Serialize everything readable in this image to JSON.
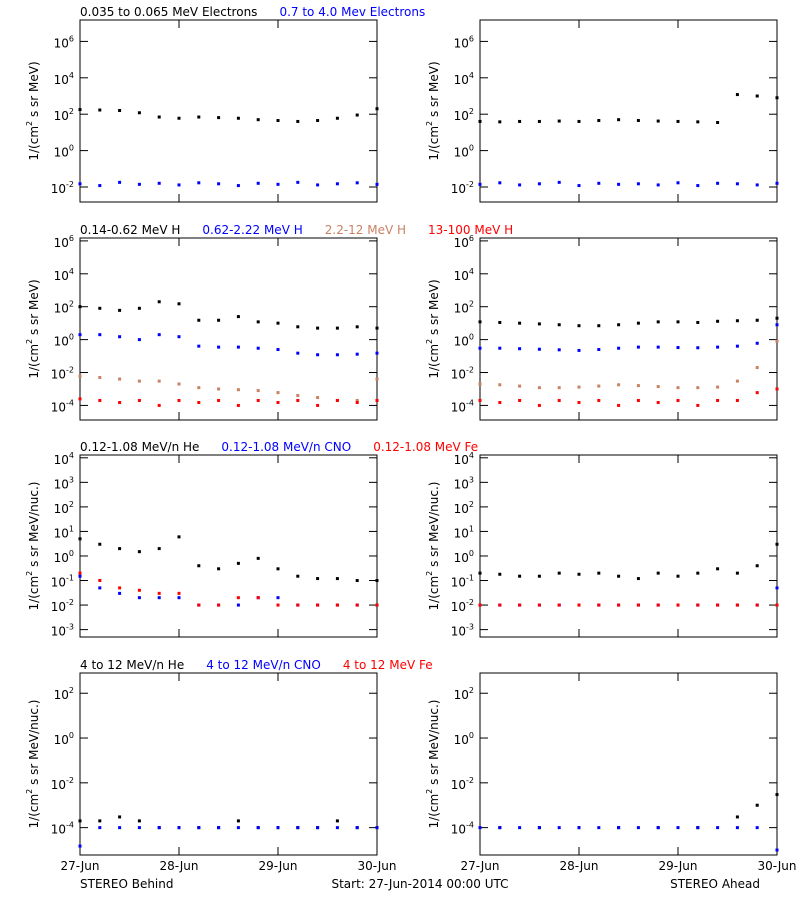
{
  "chart_data": [
    {
      "type": "scatter",
      "log_y": true,
      "ylabel": "1/(cm^2 s sr MeV)",
      "ylim": [
        0.0015,
        15000000
      ],
      "yticks": [
        {
          "value": 0.01,
          "label": "10^-2"
        },
        {
          "value": 1,
          "label": "10^0"
        },
        {
          "value": 100,
          "label": "10^2"
        },
        {
          "value": 10000,
          "label": "10^4"
        },
        {
          "value": 1000000,
          "label": "10^6"
        }
      ],
      "xlim": [
        0,
        3
      ],
      "xticks": [
        0,
        1,
        2,
        3
      ],
      "xtick_labels": false,
      "x": [
        0,
        0.2,
        0.4,
        0.6,
        0.8,
        1.0,
        1.2,
        1.4,
        1.6,
        1.8,
        2.0,
        2.2,
        2.4,
        2.6,
        2.8,
        3.0
      ],
      "series": [
        {
          "name": "0.035 to 0.065 MeV Electrons",
          "color": "#000000",
          "values": [
            180,
            170,
            160,
            120,
            70,
            60,
            70,
            65,
            60,
            50,
            45,
            40,
            45,
            60,
            90,
            200
          ]
        },
        {
          "name": "0.7 to 4.0 Mev Electrons",
          "color": "#0000ff",
          "values": [
            0.015,
            0.012,
            0.018,
            0.014,
            0.016,
            0.013,
            0.017,
            0.015,
            0.012,
            0.016,
            0.014,
            0.018,
            0.013,
            0.015,
            0.017,
            0.014
          ]
        }
      ]
    },
    {
      "type": "scatter",
      "log_y": true,
      "ylabel": "1/(cm^2 s sr MeV)",
      "ylim": [
        0.0015,
        15000000
      ],
      "yticks": [
        {
          "value": 0.01,
          "label": "10^-2"
        },
        {
          "value": 1,
          "label": "10^0"
        },
        {
          "value": 100,
          "label": "10^2"
        },
        {
          "value": 10000,
          "label": "10^4"
        },
        {
          "value": 1000000,
          "label": "10^6"
        }
      ],
      "xlim": [
        0,
        3
      ],
      "xticks": [
        0,
        1,
        2,
        3
      ],
      "xtick_labels": false,
      "x": [
        0,
        0.2,
        0.4,
        0.6,
        0.8,
        1.0,
        1.2,
        1.4,
        1.6,
        1.8,
        2.0,
        2.2,
        2.4,
        2.6,
        2.8,
        3.0
      ],
      "series": [
        {
          "color": "#000000",
          "values": [
            40,
            38,
            40,
            40,
            42,
            40,
            45,
            50,
            45,
            42,
            40,
            38,
            35,
            1200,
            1000,
            800
          ]
        },
        {
          "color": "#0000ff",
          "values": [
            0.014,
            0.017,
            0.013,
            0.015,
            0.018,
            0.012,
            0.016,
            0.014,
            0.015,
            0.013,
            0.017,
            0.012,
            0.016,
            0.015,
            0.013,
            0.016
          ]
        }
      ]
    },
    {
      "type": "scatter",
      "log_y": true,
      "ylabel": "1/(cm^2 s sr MeV)",
      "ylim": [
        1.3e-05,
        1500000
      ],
      "yticks": [
        {
          "value": 0.0001,
          "label": "10^-4"
        },
        {
          "value": 0.01,
          "label": "10^-2"
        },
        {
          "value": 1,
          "label": "10^0"
        },
        {
          "value": 100,
          "label": "10^2"
        },
        {
          "value": 10000,
          "label": "10^4"
        },
        {
          "value": 1000000,
          "label": "10^6"
        }
      ],
      "xlim": [
        0,
        3
      ],
      "xticks": [
        0,
        1,
        2,
        3
      ],
      "xtick_labels": false,
      "x": [
        0,
        0.2,
        0.4,
        0.6,
        0.8,
        1.0,
        1.2,
        1.4,
        1.6,
        1.8,
        2.0,
        2.2,
        2.4,
        2.6,
        2.8,
        3.0
      ],
      "series": [
        {
          "name": "0.14-0.62 MeV H",
          "color": "#000000",
          "values": [
            100,
            80,
            60,
            80,
            200,
            150,
            15,
            15,
            25,
            12,
            10,
            6,
            5,
            5,
            6,
            5
          ]
        },
        {
          "name": "0.62-2.22 MeV H",
          "color": "#0000ff",
          "values": [
            2,
            2,
            1.5,
            1,
            2,
            1.5,
            0.4,
            0.35,
            0.35,
            0.3,
            0.25,
            0.15,
            0.12,
            0.12,
            0.13,
            0.15
          ]
        },
        {
          "name": "2.2-12 MeV H",
          "color": "#c88264",
          "values": [
            0.006,
            0.005,
            0.004,
            0.003,
            0.003,
            0.002,
            0.0012,
            0.001,
            0.0009,
            0.0008,
            0.0006,
            0.0004,
            0.0003,
            0.0002,
            0.0002,
            0.004
          ]
        },
        {
          "name": "13-100 MeV H",
          "color": "#ff0000",
          "values": [
            0.00025,
            0.0002,
            0.00015,
            0.0002,
            0.0001,
            0.0002,
            0.00015,
            0.0002,
            0.0001,
            0.0002,
            0.00015,
            0.0002,
            0.0001,
            0.0002,
            0.00015,
            0.0002
          ]
        }
      ]
    },
    {
      "type": "scatter",
      "log_y": true,
      "ylabel": "1/(cm^2 s sr MeV)",
      "ylim": [
        1.3e-05,
        1500000
      ],
      "yticks": [
        {
          "value": 0.0001,
          "label": "10^-4"
        },
        {
          "value": 0.01,
          "label": "10^-2"
        },
        {
          "value": 1,
          "label": "10^0"
        },
        {
          "value": 100,
          "label": "10^2"
        },
        {
          "value": 10000,
          "label": "10^4"
        },
        {
          "value": 1000000,
          "label": "10^6"
        }
      ],
      "xlim": [
        0,
        3
      ],
      "xticks": [
        0,
        1,
        2,
        3
      ],
      "xtick_labels": false,
      "x": [
        0,
        0.2,
        0.4,
        0.6,
        0.8,
        1.0,
        1.2,
        1.4,
        1.6,
        1.8,
        2.0,
        2.2,
        2.4,
        2.6,
        2.8,
        3.0
      ],
      "series": [
        {
          "color": "#000000",
          "values": [
            12,
            11,
            10,
            9,
            8,
            7,
            7,
            8,
            10,
            12,
            12,
            11,
            13,
            14,
            15,
            20
          ]
        },
        {
          "color": "#0000ff",
          "values": [
            0.3,
            0.3,
            0.28,
            0.26,
            0.24,
            0.22,
            0.25,
            0.3,
            0.35,
            0.35,
            0.33,
            0.32,
            0.35,
            0.4,
            0.6,
            8
          ]
        },
        {
          "color": "#c88264",
          "values": [
            0.002,
            0.0018,
            0.0015,
            0.0012,
            0.0012,
            0.0013,
            0.0015,
            0.0018,
            0.0016,
            0.0014,
            0.0012,
            0.0012,
            0.0013,
            0.003,
            0.02,
            0.8
          ]
        },
        {
          "color": "#ff0000",
          "values": [
            0.0002,
            0.00015,
            0.0002,
            0.0001,
            0.0002,
            0.00015,
            0.0002,
            0.0001,
            0.0002,
            0.00015,
            0.0002,
            0.0001,
            0.0002,
            0.0002,
            0.0006,
            0.001
          ]
        }
      ]
    },
    {
      "type": "scatter",
      "log_y": true,
      "ylabel": "1/(cm^2 s sr MeV/nuc.)",
      "ylim": [
        0.0005,
        13000
      ],
      "yticks": [
        {
          "value": 0.001,
          "label": "10^-3"
        },
        {
          "value": 0.01,
          "label": "10^-2"
        },
        {
          "value": 0.1,
          "label": "10^-1"
        },
        {
          "value": 1,
          "label": "10^0"
        },
        {
          "value": 10,
          "label": "10^1"
        },
        {
          "value": 100,
          "label": "10^2"
        },
        {
          "value": 1000,
          "label": "10^3"
        },
        {
          "value": 10000,
          "label": "10^4"
        }
      ],
      "xlim": [
        0,
        3
      ],
      "xticks": [
        0,
        1,
        2,
        3
      ],
      "xtick_labels": false,
      "x": [
        0,
        0.2,
        0.4,
        0.6,
        0.8,
        1.0,
        1.2,
        1.4,
        1.6,
        1.8,
        2.0,
        2.2,
        2.4,
        2.6,
        2.8,
        3.0
      ],
      "series": [
        {
          "name": "0.12-1.08 MeV/n He",
          "color": "#000000",
          "values": [
            5,
            3,
            2,
            1.5,
            2,
            6,
            0.4,
            0.3,
            0.5,
            0.8,
            0.3,
            0.15,
            0.12,
            0.12,
            0.1,
            0.1
          ]
        },
        {
          "name": "0.12-1.08 MeV/n CNO",
          "color": "#0000ff",
          "values": [
            0.15,
            0.05,
            0.03,
            0.02,
            0.02,
            0.02,
            0.01,
            0.01,
            0.01,
            0.02,
            0.02,
            0.01,
            0.01,
            0.01,
            0.01,
            0.01
          ]
        },
        {
          "name": "0.12-1.08 MeV Fe",
          "color": "#ff0000",
          "values": [
            0.2,
            0.1,
            0.05,
            0.04,
            0.03,
            0.03,
            0.01,
            0.01,
            0.02,
            0.02,
            0.01,
            0.01,
            0.01,
            0.01,
            0.01,
            0.01
          ]
        }
      ]
    },
    {
      "type": "scatter",
      "log_y": true,
      "ylabel": "1/(cm^2 s sr MeV/nuc.)",
      "ylim": [
        0.0005,
        13000
      ],
      "yticks": [
        {
          "value": 0.001,
          "label": "10^-3"
        },
        {
          "value": 0.01,
          "label": "10^-2"
        },
        {
          "value": 0.1,
          "label": "10^-1"
        },
        {
          "value": 1,
          "label": "10^0"
        },
        {
          "value": 10,
          "label": "10^1"
        },
        {
          "value": 100,
          "label": "10^2"
        },
        {
          "value": 1000,
          "label": "10^3"
        },
        {
          "value": 10000,
          "label": "10^4"
        }
      ],
      "xlim": [
        0,
        3
      ],
      "xticks": [
        0,
        1,
        2,
        3
      ],
      "xtick_labels": false,
      "x": [
        0,
        0.2,
        0.4,
        0.6,
        0.8,
        1.0,
        1.2,
        1.4,
        1.6,
        1.8,
        2.0,
        2.2,
        2.4,
        2.6,
        2.8,
        3.0
      ],
      "series": [
        {
          "color": "#000000",
          "values": [
            0.2,
            0.18,
            0.15,
            0.15,
            0.2,
            0.18,
            0.2,
            0.15,
            0.12,
            0.2,
            0.15,
            0.2,
            0.3,
            0.2,
            0.4,
            3
          ]
        },
        {
          "color": "#0000ff",
          "values": [
            0.01,
            0.01,
            0.01,
            0.01,
            0.01,
            0.01,
            0.01,
            0.01,
            0.01,
            0.01,
            0.01,
            0.01,
            0.01,
            0.01,
            0.01,
            0.05
          ]
        },
        {
          "color": "#ff0000",
          "values": [
            0.01,
            0.01,
            0.01,
            0.01,
            0.01,
            0.01,
            0.01,
            0.01,
            0.01,
            0.01,
            0.01,
            0.01,
            0.01,
            0.01,
            0.01,
            0.01
          ]
        }
      ]
    },
    {
      "type": "scatter",
      "log_y": true,
      "ylabel": "1/(cm^2 s sr MeV/nuc.)",
      "ylim": [
        6e-06,
        800
      ],
      "yticks": [
        {
          "value": 0.0001,
          "label": "10^-4"
        },
        {
          "value": 0.01,
          "label": "10^-2"
        },
        {
          "value": 1,
          "label": "10^0"
        },
        {
          "value": 100,
          "label": "10^2"
        }
      ],
      "xlim": [
        0,
        3
      ],
      "xticks": [
        {
          "value": 0,
          "label": "27-Jun"
        },
        {
          "value": 1,
          "label": "28-Jun"
        },
        {
          "value": 2,
          "label": "29-Jun"
        },
        {
          "value": 3,
          "label": "30-Jun"
        }
      ],
      "x": [
        0,
        0.2,
        0.4,
        0.6,
        0.8,
        1.0,
        1.2,
        1.4,
        1.6,
        1.8,
        2.0,
        2.2,
        2.4,
        2.6,
        2.8,
        3.0
      ],
      "series": [
        {
          "name": "4 to 12 MeV/n He",
          "color": "#000000",
          "values": [
            0.0002,
            0.0002,
            0.0003,
            0.0002,
            0.0001,
            0.0001,
            0.0001,
            0.0001,
            0.0002,
            0.0001,
            0.0001,
            0.0001,
            0.0001,
            0.0002,
            0.0001,
            0.0001
          ]
        },
        {
          "name": "4 to 12 MeV/n CNO",
          "color": "#0000ff",
          "values": [
            1.5e-05,
            0.0001,
            0.0001,
            0.0001,
            0.0001,
            0.0001,
            0.0001,
            0.0001,
            0.0001,
            0.0001,
            0.0001,
            0.0001,
            0.0001,
            0.0001,
            0.0001,
            0.0001
          ]
        },
        {
          "name": "4 to 12 MeV Fe",
          "color": "#ff0000",
          "values": [
            null,
            null,
            null,
            null,
            null,
            null,
            null,
            null,
            null,
            null,
            null,
            null,
            null,
            null,
            null,
            null
          ]
        }
      ]
    },
    {
      "type": "scatter",
      "log_y": true,
      "ylabel": "1/(cm^2 s sr MeV/nuc.)",
      "ylim": [
        6e-06,
        800
      ],
      "yticks": [
        {
          "value": 0.0001,
          "label": "10^-4"
        },
        {
          "value": 0.01,
          "label": "10^-2"
        },
        {
          "value": 1,
          "label": "10^0"
        },
        {
          "value": 100,
          "label": "10^2"
        }
      ],
      "xlim": [
        0,
        3
      ],
      "xticks": [
        {
          "value": 0,
          "label": "27-Jun"
        },
        {
          "value": 1,
          "label": "28-Jun"
        },
        {
          "value": 2,
          "label": "29-Jun"
        },
        {
          "value": 3,
          "label": "30-Jun"
        }
      ],
      "x": [
        0,
        0.2,
        0.4,
        0.6,
        0.8,
        1.0,
        1.2,
        1.4,
        1.6,
        1.8,
        2.0,
        2.2,
        2.4,
        2.6,
        2.8,
        3.0
      ],
      "series": [
        {
          "color": "#000000",
          "values": [
            null,
            0.0001,
            null,
            0.0001,
            null,
            0.0001,
            null,
            0.0001,
            null,
            0.0001,
            null,
            0.0001,
            null,
            0.0003,
            0.001,
            0.003
          ]
        },
        {
          "color": "#0000ff",
          "values": [
            0.0001,
            0.0001,
            0.0001,
            0.0001,
            0.0001,
            0.0001,
            0.0001,
            0.0001,
            0.0001,
            0.0001,
            0.0001,
            0.0001,
            0.0001,
            0.0001,
            0.0001,
            1e-05
          ]
        },
        {
          "color": "#ff0000",
          "values": [
            null,
            null,
            null,
            null,
            null,
            null,
            null,
            null,
            null,
            null,
            null,
            null,
            null,
            null,
            null,
            null
          ]
        }
      ]
    }
  ],
  "footer": {
    "left": "STEREO Behind",
    "center": "Start: 27-Jun-2014 00:00 UTC",
    "right": "STEREO Ahead"
  }
}
